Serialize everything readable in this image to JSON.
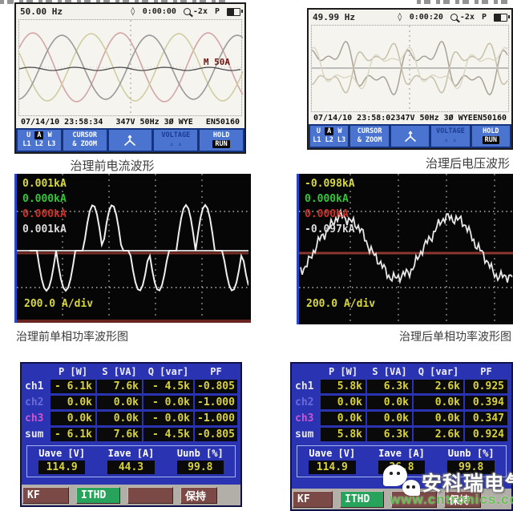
{
  "colors": {
    "fluke_menu_blue": "#4a74d0",
    "fluke_screen": "#f4f2ec",
    "scope_bg": "#060606",
    "scope_left_edge_blue": "#2846cc",
    "axis_maroon": "#8a3830",
    "table_bg": "#2a33b2",
    "value_yellow": "#d8d23c",
    "ch2_label": "#6a6ad8",
    "ch3_label": "#cc55cc",
    "ithd_green": "#28a35c",
    "softkey_maroon": "#7c4a46",
    "watermark_green": "#62be50",
    "trace_yellow": "#d8d83c",
    "trace_green": "#30c838",
    "trace_red": "#d03028",
    "trace_white": "#dcdcdc"
  },
  "icons": {
    "diamond": "◊",
    "volt_arrows": "▵ ▵"
  },
  "fluke_shared": {
    "ua_u": "U",
    "ua_a": "A",
    "ua_w": "W",
    "lines": "L1 L2 L3",
    "cursor_top": "CURSOR",
    "cursor_bot": "& ZOOM",
    "voltage": "VOLTAGE",
    "hold": "HOLD",
    "run": "RUN",
    "zoom": "-2x",
    "p": "P",
    "status_mid": "347V 50Hz 3Ø WYE",
    "status_right": "EN50160"
  },
  "fluke_left": {
    "freq": "50.00 Hz",
    "timer": "0:00:00",
    "date": "07/14/10 23:58:34",
    "marker": "M 50A"
  },
  "fluke_right": {
    "freq": "49.99 Hz",
    "timer": "0:00:20",
    "date": "07/14/10 23:58:02"
  },
  "captions": {
    "top_left": "治理前电流波形",
    "top_right": "治理后电压波形",
    "mid_left": "治理前单相功率波形图",
    "mid_right": "治理后单相功率波形图"
  },
  "scope_left": {
    "v1": "0.001kA",
    "v2": "0.000kA",
    "v3": "0.000kA",
    "v4": "0.001kA",
    "scale": "200.0 A/div"
  },
  "scope_right": {
    "v1": "-0.098kA",
    "v2": "0.000kA",
    "v3": "0.000kA",
    "v4": "-0.097kA",
    "scale": "200.0 A/div"
  },
  "table_left": {
    "headers": [
      "P [W]",
      "S [VA]",
      "Q [var]",
      "PF"
    ],
    "rows": [
      {
        "label": "ch1",
        "p": "- 6.1k",
        "s": "7.6k",
        "q": "- 4.5k",
        "pf": "-0.805"
      },
      {
        "label": "ch2",
        "p": "0.0k",
        "s": "0.0k",
        "q": "- 0.0k",
        "pf": "-1.000"
      },
      {
        "label": "ch3",
        "p": "0.0k",
        "s": "0.0k",
        "q": "- 0.0k",
        "pf": "-1.000"
      },
      {
        "label": "sum",
        "p": "- 6.1k",
        "s": "7.6k",
        "q": "- 4.5k",
        "pf": "-0.805"
      }
    ],
    "sub_headers": [
      "Uave [V]",
      "Iave [A]",
      "Uunb [%]"
    ],
    "sub_values": [
      "114.9",
      "44.3",
      "99.8"
    ],
    "buttons": [
      "KF",
      "ITHD",
      "",
      "保持"
    ]
  },
  "table_right": {
    "headers": [
      "P [W]",
      "S [VA]",
      "Q [var]",
      "PF"
    ],
    "rows": [
      {
        "label": "ch1",
        "p": "5.8k",
        "s": "6.3k",
        "q": "2.6k",
        "pf": "0.925"
      },
      {
        "label": "ch2",
        "p": "0.0k",
        "s": "0.0k",
        "q": "0.0k",
        "pf": "0.394"
      },
      {
        "label": "ch3",
        "p": "0.0k",
        "s": "0.0k",
        "q": "0.0k",
        "pf": "0.347"
      },
      {
        "label": "sum",
        "p": "5.8k",
        "s": "6.3k",
        "q": "2.6k",
        "pf": "0.924"
      }
    ],
    "sub_headers": [
      "Uave [V]",
      "Iave [A]",
      "Uunb [%]"
    ],
    "sub_values": [
      "114.9",
      "36.8",
      "99.8"
    ],
    "buttons": [
      "KF",
      "ITHD",
      "",
      "保持"
    ]
  },
  "watermark": {
    "brand": "安科瑞电气",
    "url": "www.cntronics.com"
  }
}
